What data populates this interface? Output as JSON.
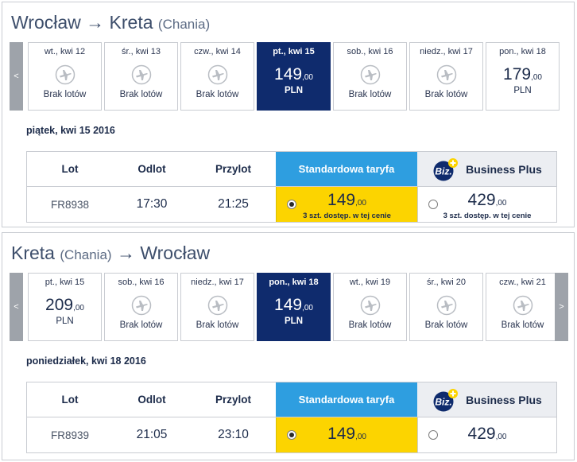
{
  "outbound": {
    "origin": "Wrocław",
    "arrow": "→",
    "destination": "Kreta",
    "destination_sub": "(Chania)",
    "nav_prev": "<",
    "days": [
      {
        "date": "wt., kwi 12",
        "no_flights": "Brak lotów"
      },
      {
        "date": "śr., kwi 13",
        "no_flights": "Brak lotów"
      },
      {
        "date": "czw., kwi 14",
        "no_flights": "Brak lotów"
      },
      {
        "date": "pt., kwi 15",
        "price": "149",
        "price_dec": ",00",
        "currency": "PLN",
        "selected": true
      },
      {
        "date": "sob., kwi 16",
        "no_flights": "Brak lotów"
      },
      {
        "date": "niedz., kwi 17",
        "no_flights": "Brak lotów"
      },
      {
        "date": "pon., kwi 18",
        "price": "179",
        "price_dec": ",00",
        "currency": "PLN"
      }
    ],
    "selected_date": "piątek, kwi 15 2016",
    "headers": {
      "lot": "Lot",
      "odlot": "Odlot",
      "przylot": "Przylot",
      "standard": "Standardowa taryfa",
      "business": "Business Plus",
      "biz_logo": "Biz."
    },
    "flight": {
      "number": "FR8938",
      "depart": "17:30",
      "arrive": "21:25"
    },
    "standard_fare": {
      "price": "149",
      "price_dec": ",00",
      "availability": "3 szt. dostęp. w tej cenie",
      "selected": true
    },
    "business_fare": {
      "price": "429",
      "price_dec": ",00",
      "availability": "3 szt. dostęp. w tej cenie",
      "selected": false
    }
  },
  "return": {
    "origin": "Kreta",
    "origin_sub": "(Chania)",
    "arrow": "→",
    "destination": "Wrocław",
    "nav_prev": "<",
    "nav_next": ">",
    "days": [
      {
        "date": "pt., kwi 15",
        "price": "209",
        "price_dec": ",00",
        "currency": "PLN"
      },
      {
        "date": "sob., kwi 16",
        "no_flights": "Brak lotów"
      },
      {
        "date": "niedz., kwi 17",
        "no_flights": "Brak lotów"
      },
      {
        "date": "pon., kwi 18",
        "price": "149",
        "price_dec": ",00",
        "currency": "PLN",
        "selected": true
      },
      {
        "date": "wt., kwi 19",
        "no_flights": "Brak lotów"
      },
      {
        "date": "śr., kwi 20",
        "no_flights": "Brak lotów"
      },
      {
        "date": "czw., kwi 21",
        "no_flights": "Brak lotów"
      }
    ],
    "selected_date": "poniedziałek, kwi 18 2016",
    "headers": {
      "lot": "Lot",
      "odlot": "Odlot",
      "przylot": "Przylot",
      "standard": "Standardowa taryfa",
      "business": "Business Plus",
      "biz_logo": "Biz."
    },
    "flight": {
      "number": "FR8939",
      "depart": "21:05",
      "arrive": "23:10"
    },
    "standard_fare": {
      "price": "149",
      "price_dec": ",00",
      "selected": true
    },
    "business_fare": {
      "price": "429",
      "price_dec": ",00",
      "selected": false
    }
  },
  "colors": {
    "selected_day": "#0f2b6d",
    "standard_header": "#2e9ee0",
    "standard_fare": "#fcd400",
    "nav_arrow": "#9ea3aa"
  }
}
